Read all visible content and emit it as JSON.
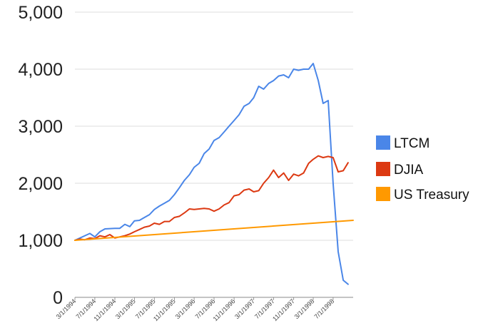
{
  "chart_data": {
    "type": "line",
    "ylim": [
      0,
      5000
    ],
    "yticks": [
      0,
      1000,
      2000,
      3000,
      4000,
      5000
    ],
    "ytick_labels": [
      "0",
      "1,000",
      "2,000",
      "3,000",
      "4,000",
      "5,000"
    ],
    "x_range": [
      "1994-03-01",
      "1998-11-01"
    ],
    "x_tick_dates": [
      "1994-03-01",
      "1994-07-01",
      "1994-11-01",
      "1995-03-01",
      "1995-07-01",
      "1995-11-01",
      "1996-03-01",
      "1996-07-01",
      "1996-11-01",
      "1997-03-01",
      "1997-07-01",
      "1997-11-01",
      "1998-03-01",
      "1998-07-01"
    ],
    "x_tick_labels": [
      "3/1/1994",
      "7/1/1994",
      "11/1/1994",
      "3/1/1995",
      "7/1/1995",
      "11/1/1995",
      "3/1/1996",
      "7/1/1996",
      "11/1/1996",
      "3/1/1997",
      "7/1/1997",
      "11/1/1997",
      "3/1/1998",
      "7/1/1998"
    ],
    "grid": "horizontal",
    "legend_position": "right",
    "series": [
      {
        "name": "LTCM",
        "color": "#4a86e8",
        "points": [
          [
            "1994-03-01",
            1000
          ],
          [
            "1994-05-01",
            1080
          ],
          [
            "1994-06-01",
            1120
          ],
          [
            "1994-07-01",
            1060
          ],
          [
            "1994-08-01",
            1150
          ],
          [
            "1994-09-01",
            1200
          ],
          [
            "1994-11-01",
            1210
          ],
          [
            "1994-12-01",
            1210
          ],
          [
            "1995-01-01",
            1280
          ],
          [
            "1995-02-01",
            1240
          ],
          [
            "1995-03-01",
            1340
          ],
          [
            "1995-04-01",
            1350
          ],
          [
            "1995-05-01",
            1400
          ],
          [
            "1995-06-01",
            1450
          ],
          [
            "1995-07-01",
            1540
          ],
          [
            "1995-08-01",
            1600
          ],
          [
            "1995-09-01",
            1650
          ],
          [
            "1995-10-01",
            1700
          ],
          [
            "1995-11-01",
            1800
          ],
          [
            "1995-12-01",
            1920
          ],
          [
            "1996-01-01",
            2050
          ],
          [
            "1996-02-01",
            2150
          ],
          [
            "1996-03-01",
            2280
          ],
          [
            "1996-04-01",
            2350
          ],
          [
            "1996-05-01",
            2520
          ],
          [
            "1996-06-01",
            2600
          ],
          [
            "1996-07-01",
            2750
          ],
          [
            "1996-08-01",
            2800
          ],
          [
            "1996-09-01",
            2900
          ],
          [
            "1996-10-01",
            3000
          ],
          [
            "1996-11-01",
            3100
          ],
          [
            "1996-12-01",
            3200
          ],
          [
            "1997-01-01",
            3350
          ],
          [
            "1997-02-01",
            3400
          ],
          [
            "1997-03-01",
            3500
          ],
          [
            "1997-04-01",
            3700
          ],
          [
            "1997-05-01",
            3650
          ],
          [
            "1997-06-01",
            3750
          ],
          [
            "1997-07-01",
            3800
          ],
          [
            "1997-08-01",
            3880
          ],
          [
            "1997-09-01",
            3900
          ],
          [
            "1997-10-01",
            3850
          ],
          [
            "1997-11-01",
            4000
          ],
          [
            "1997-12-01",
            3980
          ],
          [
            "1998-01-01",
            4000
          ],
          [
            "1998-02-01",
            4000
          ],
          [
            "1998-03-01",
            4100
          ],
          [
            "1998-04-01",
            3800
          ],
          [
            "1998-05-01",
            3400
          ],
          [
            "1998-06-01",
            3450
          ],
          [
            "1998-07-01",
            2000
          ],
          [
            "1998-08-01",
            800
          ],
          [
            "1998-09-01",
            300
          ],
          [
            "1998-10-01",
            230
          ]
        ]
      },
      {
        "name": "DJIA",
        "color": "#dc3912",
        "points": [
          [
            "1994-03-01",
            1000
          ],
          [
            "1994-04-01",
            1020
          ],
          [
            "1994-05-01",
            1010
          ],
          [
            "1994-06-01",
            1040
          ],
          [
            "1994-07-01",
            1030
          ],
          [
            "1994-08-01",
            1080
          ],
          [
            "1994-09-01",
            1060
          ],
          [
            "1994-10-01",
            1100
          ],
          [
            "1994-11-01",
            1040
          ],
          [
            "1994-12-01",
            1060
          ],
          [
            "1995-01-01",
            1080
          ],
          [
            "1995-02-01",
            1110
          ],
          [
            "1995-03-01",
            1150
          ],
          [
            "1995-04-01",
            1190
          ],
          [
            "1995-05-01",
            1230
          ],
          [
            "1995-06-01",
            1250
          ],
          [
            "1995-07-01",
            1300
          ],
          [
            "1995-08-01",
            1280
          ],
          [
            "1995-09-01",
            1330
          ],
          [
            "1995-10-01",
            1330
          ],
          [
            "1995-11-01",
            1400
          ],
          [
            "1995-12-01",
            1420
          ],
          [
            "1996-01-01",
            1480
          ],
          [
            "1996-02-01",
            1550
          ],
          [
            "1996-03-01",
            1540
          ],
          [
            "1996-04-01",
            1550
          ],
          [
            "1996-05-01",
            1560
          ],
          [
            "1996-06-01",
            1550
          ],
          [
            "1996-07-01",
            1510
          ],
          [
            "1996-08-01",
            1550
          ],
          [
            "1996-09-01",
            1620
          ],
          [
            "1996-10-01",
            1660
          ],
          [
            "1996-11-01",
            1780
          ],
          [
            "1996-12-01",
            1800
          ],
          [
            "1997-01-01",
            1880
          ],
          [
            "1997-02-01",
            1900
          ],
          [
            "1997-03-01",
            1850
          ],
          [
            "1997-04-01",
            1870
          ],
          [
            "1997-05-01",
            2000
          ],
          [
            "1997-06-01",
            2100
          ],
          [
            "1997-07-01",
            2230
          ],
          [
            "1997-08-01",
            2100
          ],
          [
            "1997-09-01",
            2180
          ],
          [
            "1997-10-01",
            2050
          ],
          [
            "1997-11-01",
            2160
          ],
          [
            "1997-12-01",
            2130
          ],
          [
            "1998-01-01",
            2180
          ],
          [
            "1998-02-01",
            2350
          ],
          [
            "1998-03-01",
            2420
          ],
          [
            "1998-04-01",
            2480
          ],
          [
            "1998-05-01",
            2450
          ],
          [
            "1998-06-01",
            2470
          ],
          [
            "1998-07-01",
            2450
          ],
          [
            "1998-08-01",
            2200
          ],
          [
            "1998-09-01",
            2220
          ],
          [
            "1998-10-01",
            2360
          ]
        ]
      },
      {
        "name": "US Treasury",
        "color": "#ff9900",
        "points": [
          [
            "1994-03-01",
            1000
          ],
          [
            "1998-11-01",
            1350
          ]
        ]
      }
    ]
  }
}
